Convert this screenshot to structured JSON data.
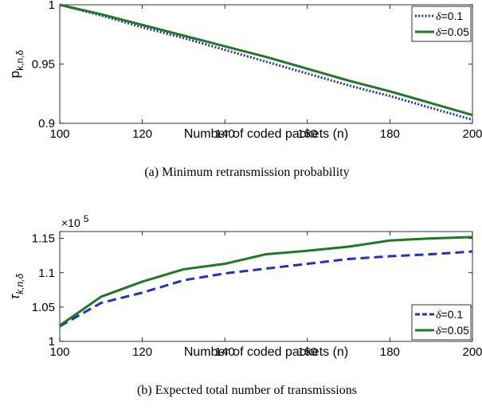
{
  "chart_data": [
    {
      "type": "line",
      "caption": "(a) Minimum retransmission probability",
      "xlabel": "Number of coded packets (n)",
      "ylabel": "p",
      "ylabel_subscript": "k,n,δ",
      "xlim": [
        100,
        200
      ],
      "ylim": [
        0.9,
        1.0
      ],
      "xticks": [
        100,
        120,
        140,
        160,
        180,
        200
      ],
      "xtick_labels": [
        "100",
        "120",
        "140",
        "160",
        "180",
        "200"
      ],
      "yticks": [
        0.9,
        0.95,
        1.0
      ],
      "ytick_labels": [
        "0.9",
        "0.95",
        "1"
      ],
      "legend_placement": "top-right",
      "grid": false,
      "x": [
        100,
        110,
        120,
        130,
        140,
        150,
        160,
        170,
        180,
        190,
        200
      ],
      "series": [
        {
          "name": "δ=0.1",
          "legend_symbol": "δ",
          "legend_value": "=0.1",
          "color": "#1f2fd6",
          "style": "dotted",
          "values": [
            1.0,
            0.991,
            0.981,
            0.972,
            0.962,
            0.952,
            0.942,
            0.932,
            0.923,
            0.913,
            0.903
          ]
        },
        {
          "name": "δ=0.05",
          "legend_symbol": "δ",
          "legend_value": "=0.05",
          "color": "#1e7a1e",
          "style": "solid",
          "values": [
            1.0,
            0.992,
            0.983,
            0.974,
            0.965,
            0.956,
            0.946,
            0.936,
            0.927,
            0.917,
            0.907
          ]
        }
      ]
    },
    {
      "type": "line",
      "caption": "(b) Expected total number of transmissions",
      "xlabel": "Number of coded packets (n)",
      "ylabel": "τ",
      "ylabel_subscript": "k,n,δ",
      "scale_base": "×10",
      "scale_exponent": "5",
      "xlim": [
        100,
        200
      ],
      "ylim": [
        1.0,
        1.16
      ],
      "xticks": [
        100,
        120,
        140,
        160,
        180,
        200
      ],
      "xtick_labels": [
        "100",
        "120",
        "140",
        "160",
        "180",
        "200"
      ],
      "yticks": [
        1.0,
        1.05,
        1.1,
        1.15
      ],
      "ytick_labels": [
        "1",
        "1.05",
        "1.1",
        "1.15"
      ],
      "legend_placement": "bottom-right",
      "grid": false,
      "x": [
        100,
        110,
        120,
        130,
        140,
        150,
        160,
        170,
        180,
        190,
        200
      ],
      "series": [
        {
          "name": "δ=0.1",
          "legend_symbol": "δ",
          "legend_value": "=0.1",
          "color": "#1f2fd6",
          "style": "dashed",
          "values": [
            1.022,
            1.056,
            1.071,
            1.089,
            1.099,
            1.106,
            1.113,
            1.12,
            1.124,
            1.127,
            1.131
          ]
        },
        {
          "name": "δ=0.05",
          "legend_symbol": "δ",
          "legend_value": "=0.05",
          "color": "#1e7a1e",
          "style": "solid",
          "values": [
            1.023,
            1.065,
            1.087,
            1.105,
            1.113,
            1.127,
            1.132,
            1.138,
            1.147,
            1.15,
            1.152
          ]
        }
      ]
    }
  ]
}
